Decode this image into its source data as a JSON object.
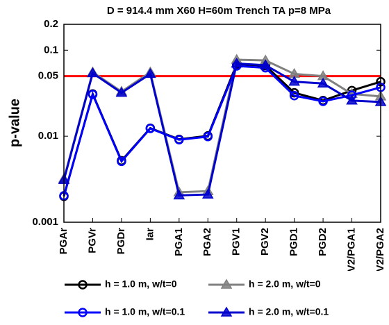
{
  "chart_data": {
    "type": "line",
    "title": "D = 914.4 mm X60 H=60m Trench TA p=8 MPa",
    "y_label": "p-value",
    "log_y": true,
    "categories": [
      "PGAr",
      "PGVr",
      "PGDr",
      "Iar",
      "PGA1",
      "PGA2",
      "PGV1",
      "PGV2",
      "PGD1",
      "PGD2",
      "PGV2/PGA1",
      "PGV2/PGA2"
    ],
    "ylim": [
      0.001,
      0.2
    ],
    "yticks": [
      0.001,
      0.01,
      0.05,
      0.1,
      0.2
    ],
    "reference_line": {
      "value": 0.05,
      "color": "#ff0000"
    },
    "series": [
      {
        "name": "h = 1.0 m, w/t=0",
        "color": "#000000",
        "marker": "circle",
        "values": [
          0.002,
          0.031,
          0.0052,
          0.0124,
          0.0092,
          0.0101,
          0.069,
          0.066,
          0.032,
          0.026,
          0.034,
          0.043
        ]
      },
      {
        "name": "h = 2.0 m, w/t=0",
        "color": "#808080",
        "marker": "triangle",
        "values": [
          0.0032,
          0.0555,
          0.033,
          0.0555,
          0.00223,
          0.0023,
          0.0775,
          0.076,
          0.053,
          0.05,
          0.031,
          0.029
        ]
      },
      {
        "name": "h = 1.0 m, w/t=0.1",
        "color": "#0000ff",
        "marker": "circle",
        "values": [
          0.00203,
          0.0306,
          0.0051,
          0.0123,
          0.0091,
          0.0099,
          0.0656,
          0.0624,
          0.0296,
          0.0254,
          0.03,
          0.037
        ]
      },
      {
        "name": "h = 2.0 m, w/t=0.1",
        "color": "#0000cc",
        "marker": "triangle",
        "values": [
          0.0031,
          0.054,
          0.032,
          0.053,
          0.00205,
          0.0021,
          0.07,
          0.067,
          0.043,
          0.041,
          0.026,
          0.025
        ]
      }
    ]
  }
}
